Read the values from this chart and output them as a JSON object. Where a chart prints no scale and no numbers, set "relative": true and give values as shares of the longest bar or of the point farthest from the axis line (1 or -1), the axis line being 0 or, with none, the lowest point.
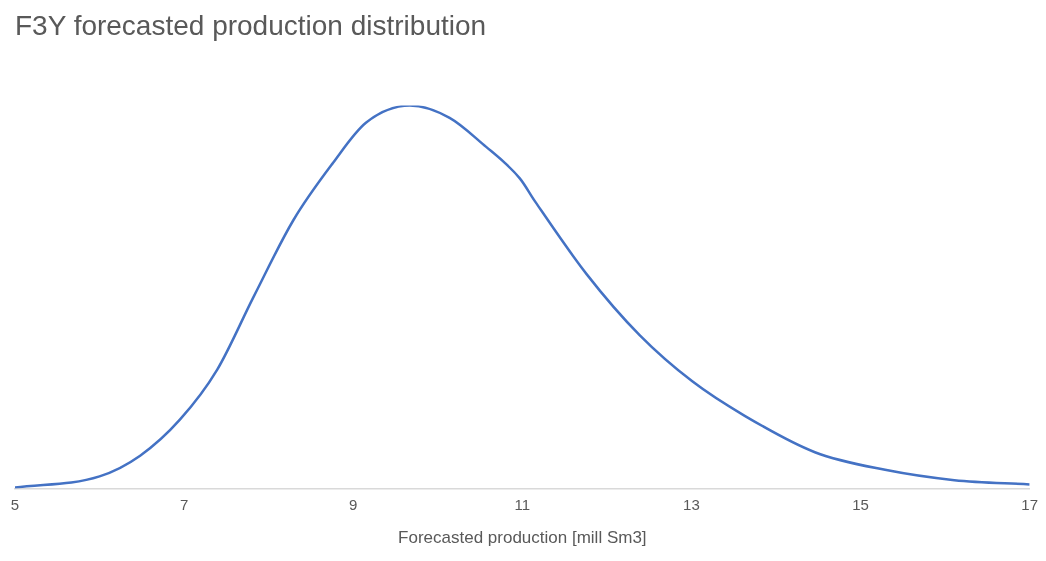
{
  "chart_data": {
    "type": "line",
    "title": "F3Y forecasted production distribution",
    "xlabel": "Forecasted production [mill Sm3]",
    "relative": true,
    "x": [
      5,
      6,
      6.48,
      6.95,
      7.39,
      7.82,
      8.29,
      8.76,
      9.15,
      9.67,
      10.14,
      10.53,
      10.97,
      11.15,
      11.76,
      12.39,
      13.01,
      13.63,
      14.46,
      15.29,
      16.11,
      17
    ],
    "series": [
      {
        "color": "#4472c4",
        "values": [
          0.003,
          0.032,
          0.086,
          0.18,
          0.31,
          0.5,
          0.7,
          0.85,
          0.955,
          1,
          0.968,
          0.9,
          0.81,
          0.75,
          0.56,
          0.4,
          0.28,
          0.19,
          0.095,
          0.049,
          0.022,
          0.011
        ]
      }
    ],
    "xlim": [
      5,
      17
    ],
    "xticks": [
      5,
      7,
      9,
      11,
      13,
      15,
      17
    ],
    "grid": false,
    "legend": false,
    "marker": "none",
    "line_style": "solid"
  }
}
